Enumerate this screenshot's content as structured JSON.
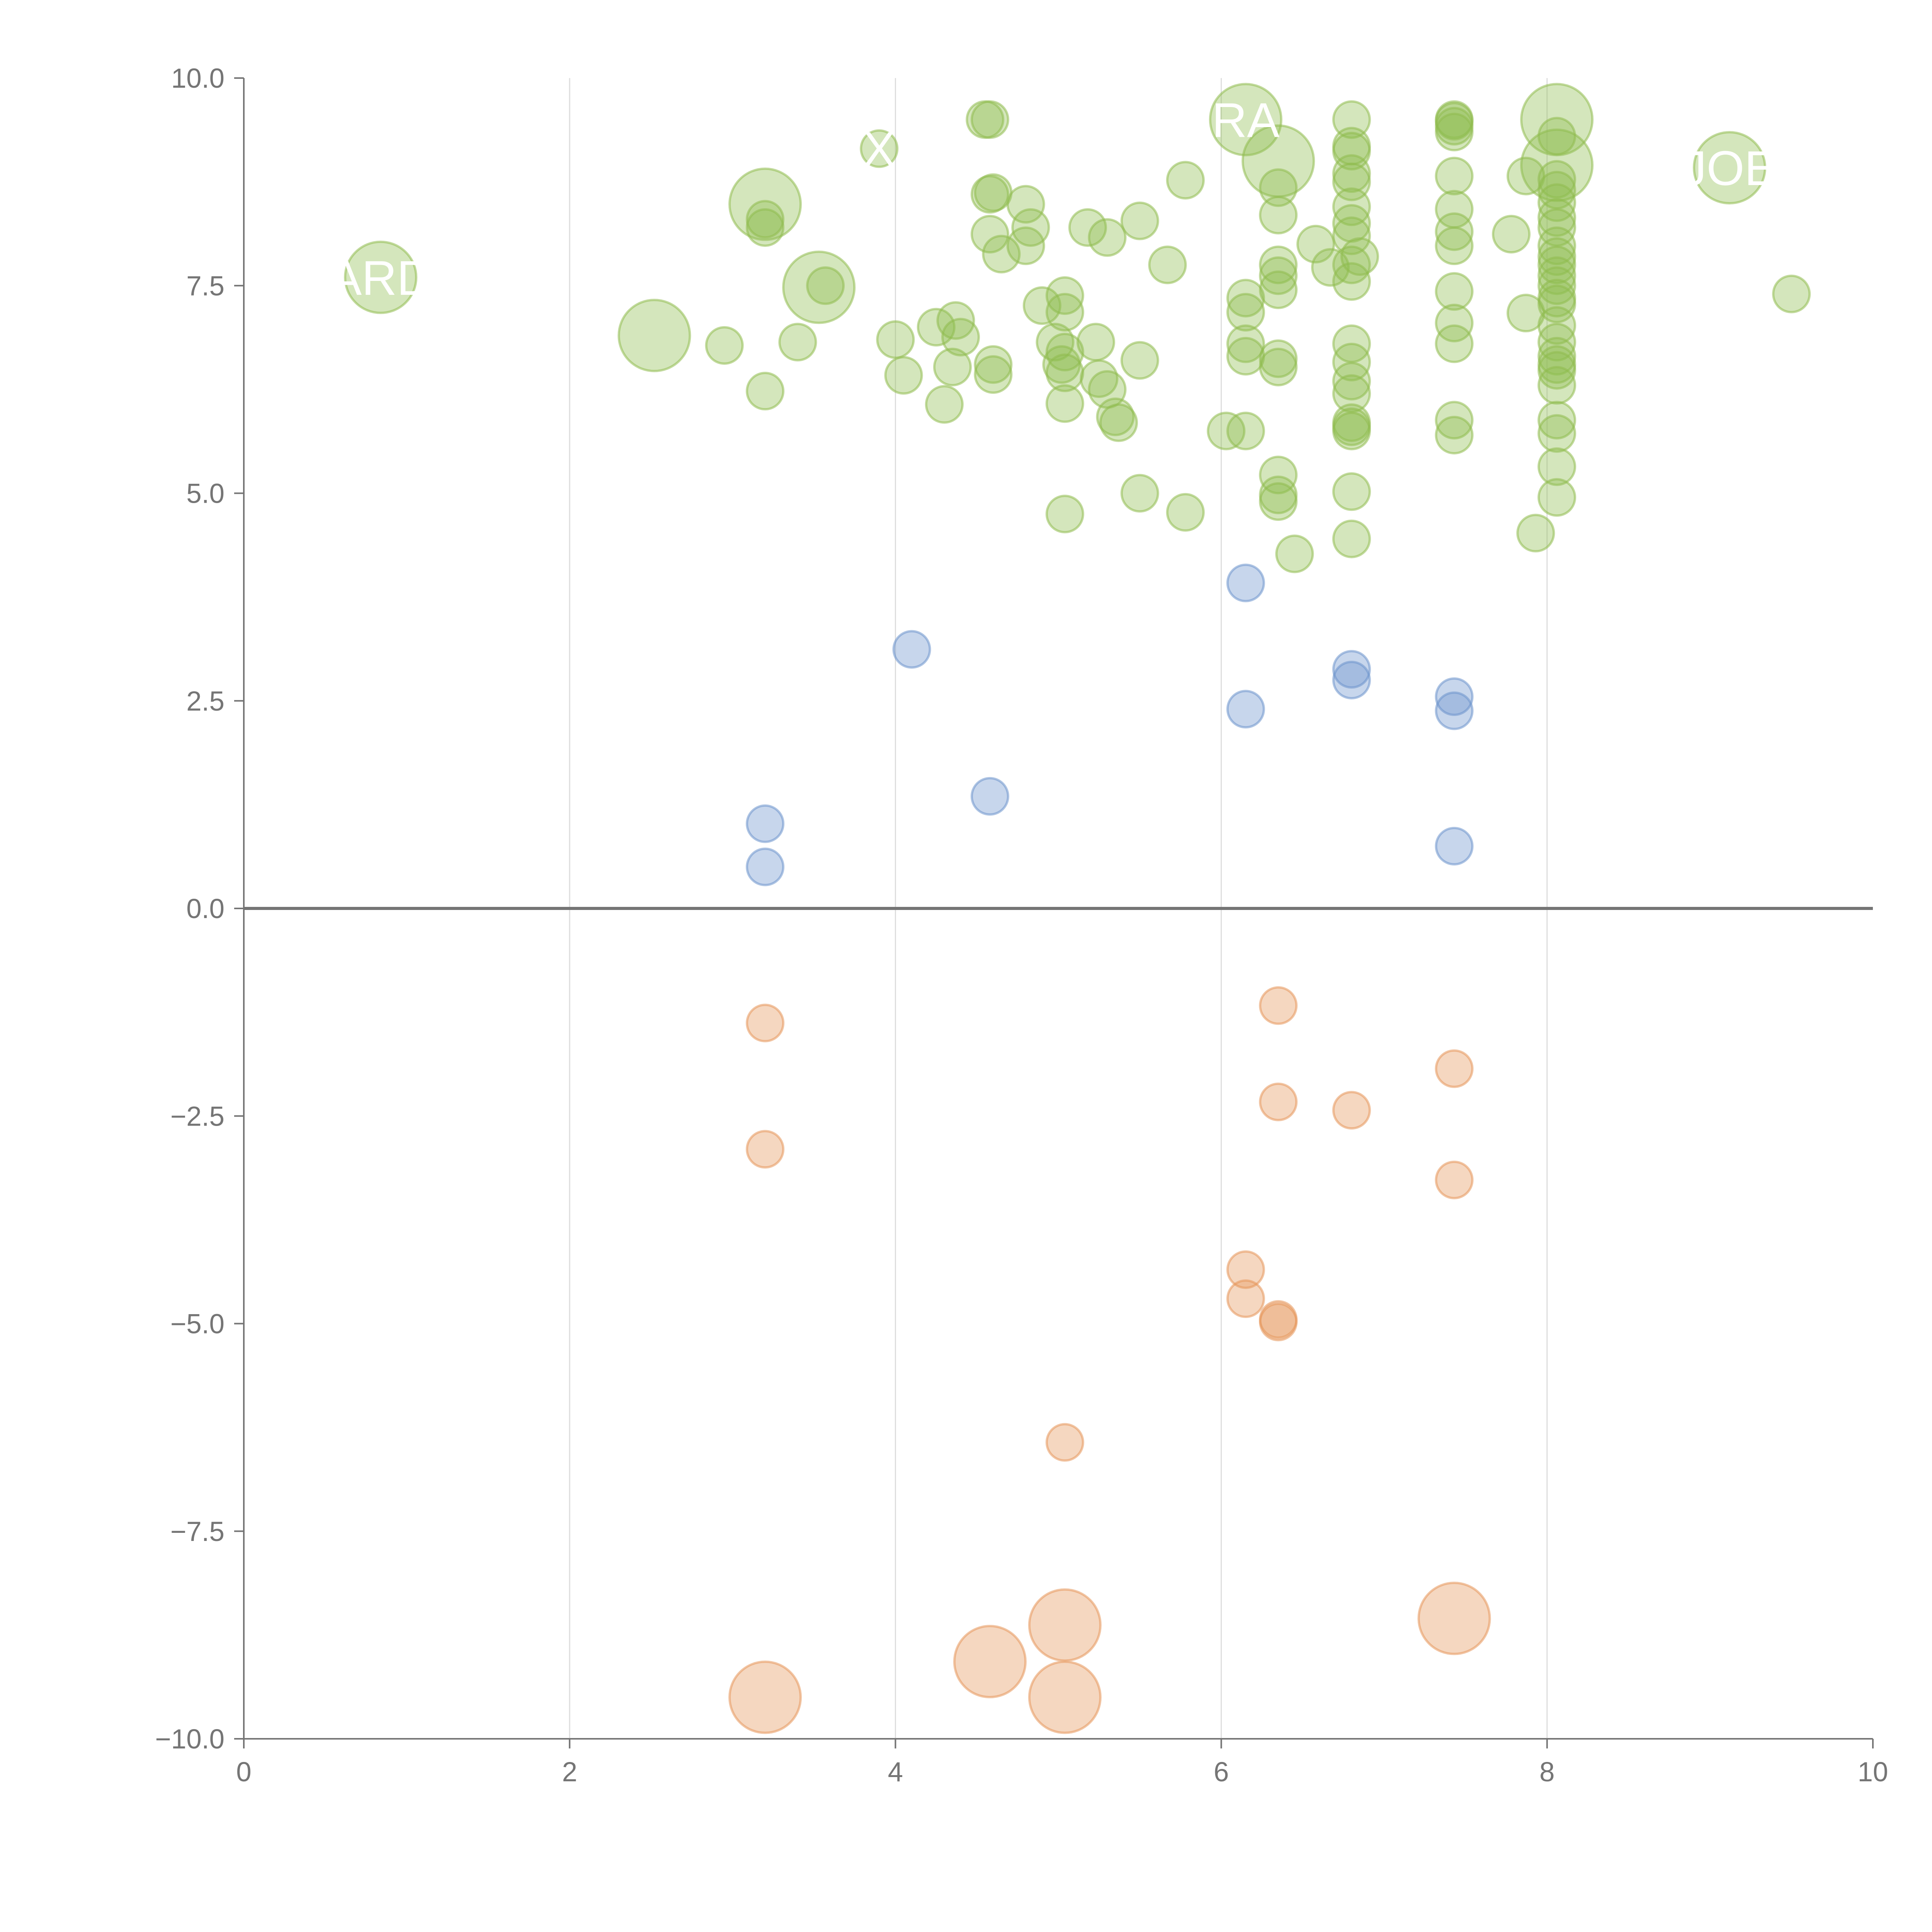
{
  "chart_data": {
    "type": "scatter",
    "title": "",
    "xlabel": "",
    "ylabel": "",
    "xlim": [
      0,
      10
    ],
    "ylim": [
      -10,
      10
    ],
    "x_ticks": [
      "0",
      "2",
      "4",
      "6",
      "8",
      "10"
    ],
    "y_ticks": [
      "10.0",
      "7.5",
      "5.0",
      "2.5",
      "0.0",
      "−2.5",
      "−5.0",
      "−7.5",
      "−10.0"
    ],
    "grid": "vertical lines at x ticks",
    "zero_line": true,
    "legend": "none",
    "colors": {
      "green": "#8fbc4e",
      "blue": "#6b93cc",
      "orange": "#e5955a",
      "axis": "#757575",
      "grid": "#dddddd"
    },
    "series": [
      {
        "color": "green",
        "points": [
          [
            0.84,
            7.6,
            3
          ],
          [
            2.52,
            6.9,
            3
          ],
          [
            3.2,
            8.48,
            3
          ],
          [
            3.53,
            7.48,
            3
          ],
          [
            6.15,
            9.5,
            3
          ],
          [
            6.35,
            9.0,
            3
          ],
          [
            8.06,
            9.5,
            3
          ],
          [
            8.06,
            8.95,
            3
          ],
          [
            9.12,
            8.92,
            3
          ],
          [
            3.2,
            8.2,
            1
          ],
          [
            3.2,
            8.3,
            1
          ],
          [
            2.95,
            6.78,
            1
          ],
          [
            3.2,
            6.23,
            1
          ],
          [
            3.4,
            6.82,
            1
          ],
          [
            3.57,
            7.5,
            1
          ],
          [
            3.9,
            9.15,
            1
          ],
          [
            4.0,
            6.85,
            1
          ],
          [
            4.05,
            6.42,
            1
          ],
          [
            4.25,
            7.0,
            1
          ],
          [
            4.3,
            6.07,
            1
          ],
          [
            4.35,
            6.52,
            1
          ],
          [
            4.37,
            7.08,
            1
          ],
          [
            4.4,
            6.88,
            1
          ],
          [
            4.55,
            9.5,
            1
          ],
          [
            4.58,
            9.5,
            1
          ],
          [
            4.58,
            8.6,
            1
          ],
          [
            4.6,
            8.62,
            1
          ],
          [
            4.58,
            8.12,
            1
          ],
          [
            4.6,
            6.55,
            1
          ],
          [
            4.6,
            6.43,
            1
          ],
          [
            4.65,
            7.88,
            1
          ],
          [
            4.8,
            8.48,
            1
          ],
          [
            4.8,
            7.98,
            1
          ],
          [
            4.83,
            8.2,
            1
          ],
          [
            4.9,
            7.26,
            1
          ],
          [
            4.98,
            6.82,
            1
          ],
          [
            5.02,
            6.55,
            1
          ],
          [
            5.04,
            6.08,
            1
          ],
          [
            5.04,
            4.75,
            1
          ],
          [
            5.04,
            7.38,
            1
          ],
          [
            5.04,
            7.18,
            1
          ],
          [
            5.04,
            6.7,
            1
          ],
          [
            5.04,
            6.45,
            1
          ],
          [
            5.18,
            8.2,
            1
          ],
          [
            5.23,
            6.82,
            1
          ],
          [
            5.25,
            6.38,
            1
          ],
          [
            5.3,
            8.08,
            1
          ],
          [
            5.3,
            6.25,
            1
          ],
          [
            5.35,
            5.92,
            1
          ],
          [
            5.37,
            5.85,
            1
          ],
          [
            5.5,
            8.28,
            1
          ],
          [
            5.5,
            6.6,
            1
          ],
          [
            5.5,
            5.0,
            1
          ],
          [
            5.67,
            7.75,
            1
          ],
          [
            5.78,
            8.77,
            1
          ],
          [
            5.78,
            4.77,
            1
          ],
          [
            6.03,
            5.75,
            1
          ],
          [
            6.15,
            7.35,
            1
          ],
          [
            6.15,
            7.18,
            1
          ],
          [
            6.15,
            6.8,
            1
          ],
          [
            6.15,
            6.65,
            1
          ],
          [
            6.15,
            5.75,
            1
          ],
          [
            6.35,
            8.68,
            1
          ],
          [
            6.35,
            8.35,
            1
          ],
          [
            6.35,
            7.75,
            1
          ],
          [
            6.35,
            7.62,
            1
          ],
          [
            6.35,
            7.45,
            1
          ],
          [
            6.35,
            6.62,
            1
          ],
          [
            6.35,
            6.52,
            1
          ],
          [
            6.35,
            5.22,
            1
          ],
          [
            6.35,
            4.98,
            1
          ],
          [
            6.35,
            4.9,
            1
          ],
          [
            6.45,
            4.27,
            1
          ],
          [
            6.58,
            8.0,
            1
          ],
          [
            6.67,
            7.72,
            1
          ],
          [
            6.8,
            9.5,
            1
          ],
          [
            6.8,
            9.18,
            1
          ],
          [
            6.8,
            9.12,
            1
          ],
          [
            6.8,
            8.85,
            1
          ],
          [
            6.8,
            8.75,
            1
          ],
          [
            6.8,
            8.45,
            1
          ],
          [
            6.8,
            8.25,
            1
          ],
          [
            6.8,
            8.1,
            1
          ],
          [
            6.8,
            7.75,
            1
          ],
          [
            6.8,
            7.55,
            1
          ],
          [
            6.8,
            6.8,
            1
          ],
          [
            6.8,
            6.58,
            1
          ],
          [
            6.8,
            6.35,
            1
          ],
          [
            6.8,
            6.2,
            1
          ],
          [
            6.8,
            5.85,
            1
          ],
          [
            6.8,
            5.8,
            1
          ],
          [
            6.8,
            5.75,
            1
          ],
          [
            6.8,
            5.02,
            1
          ],
          [
            6.8,
            4.45,
            1
          ],
          [
            6.85,
            7.85,
            1
          ],
          [
            7.43,
            9.5,
            1
          ],
          [
            7.43,
            9.48,
            1
          ],
          [
            7.43,
            9.42,
            1
          ],
          [
            7.43,
            9.35,
            1
          ],
          [
            7.43,
            8.82,
            1
          ],
          [
            7.43,
            8.42,
            1
          ],
          [
            7.43,
            8.15,
            1
          ],
          [
            7.43,
            7.98,
            1
          ],
          [
            7.43,
            7.43,
            1
          ],
          [
            7.43,
            7.05,
            1
          ],
          [
            7.43,
            6.8,
            1
          ],
          [
            7.43,
            5.88,
            1
          ],
          [
            7.43,
            5.7,
            1
          ],
          [
            7.78,
            8.12,
            1
          ],
          [
            7.87,
            8.82,
            1
          ],
          [
            7.87,
            7.17,
            1
          ],
          [
            7.93,
            4.52,
            1
          ],
          [
            8.06,
            9.3,
            1
          ],
          [
            8.06,
            8.78,
            1
          ],
          [
            8.06,
            8.65,
            1
          ],
          [
            8.06,
            8.5,
            1
          ],
          [
            8.06,
            8.32,
            1
          ],
          [
            8.06,
            8.2,
            1
          ],
          [
            8.06,
            7.98,
            1
          ],
          [
            8.06,
            7.85,
            1
          ],
          [
            8.06,
            7.75,
            1
          ],
          [
            8.06,
            7.62,
            1
          ],
          [
            8.06,
            7.5,
            1
          ],
          [
            8.06,
            7.35,
            1
          ],
          [
            8.06,
            7.28,
            1
          ],
          [
            8.06,
            7.02,
            1
          ],
          [
            8.06,
            6.82,
            1
          ],
          [
            8.06,
            6.65,
            1
          ],
          [
            8.06,
            6.55,
            1
          ],
          [
            8.06,
            6.48,
            1
          ],
          [
            8.06,
            6.3,
            1
          ],
          [
            8.06,
            5.88,
            1
          ],
          [
            8.06,
            5.72,
            1
          ],
          [
            8.06,
            5.32,
            1
          ],
          [
            8.06,
            4.95,
            1
          ],
          [
            9.5,
            7.4,
            1
          ]
        ]
      },
      {
        "color": "blue",
        "points": [
          [
            3.2,
            1.02,
            1
          ],
          [
            3.2,
            0.5,
            1
          ],
          [
            4.1,
            3.12,
            1
          ],
          [
            4.58,
            1.35,
            1
          ],
          [
            6.15,
            3.92,
            1
          ],
          [
            6.15,
            2.4,
            1
          ],
          [
            6.8,
            2.88,
            1
          ],
          [
            6.8,
            2.75,
            1
          ],
          [
            7.43,
            2.55,
            1
          ],
          [
            7.43,
            2.38,
            1
          ],
          [
            7.43,
            0.75,
            1
          ]
        ]
      },
      {
        "color": "orange",
        "points": [
          [
            3.2,
            -1.38,
            1
          ],
          [
            3.2,
            -2.9,
            1
          ],
          [
            5.04,
            -6.43,
            1
          ],
          [
            6.15,
            -4.35,
            1
          ],
          [
            6.15,
            -4.7,
            1
          ],
          [
            6.35,
            -1.17,
            1
          ],
          [
            6.35,
            -2.33,
            1
          ],
          [
            6.35,
            -4.95,
            1
          ],
          [
            6.35,
            -4.98,
            1
          ],
          [
            6.8,
            -2.43,
            1
          ],
          [
            7.43,
            -1.93,
            1
          ],
          [
            7.43,
            -3.27,
            1
          ],
          [
            3.2,
            -9.5,
            3
          ],
          [
            4.58,
            -9.07,
            3
          ],
          [
            5.04,
            -8.63,
            3
          ],
          [
            5.04,
            -9.5,
            3
          ],
          [
            7.43,
            -8.55,
            3
          ]
        ]
      }
    ],
    "labels": [
      {
        "text": "ARD",
        "x": 0.84,
        "y": 7.6
      },
      {
        "text": "RA",
        "x": 6.15,
        "y": 9.5
      },
      {
        "text": "JOE",
        "x": 9.12,
        "y": 8.92
      },
      {
        "text": "X",
        "x": 3.9,
        "y": 9.15
      }
    ]
  }
}
